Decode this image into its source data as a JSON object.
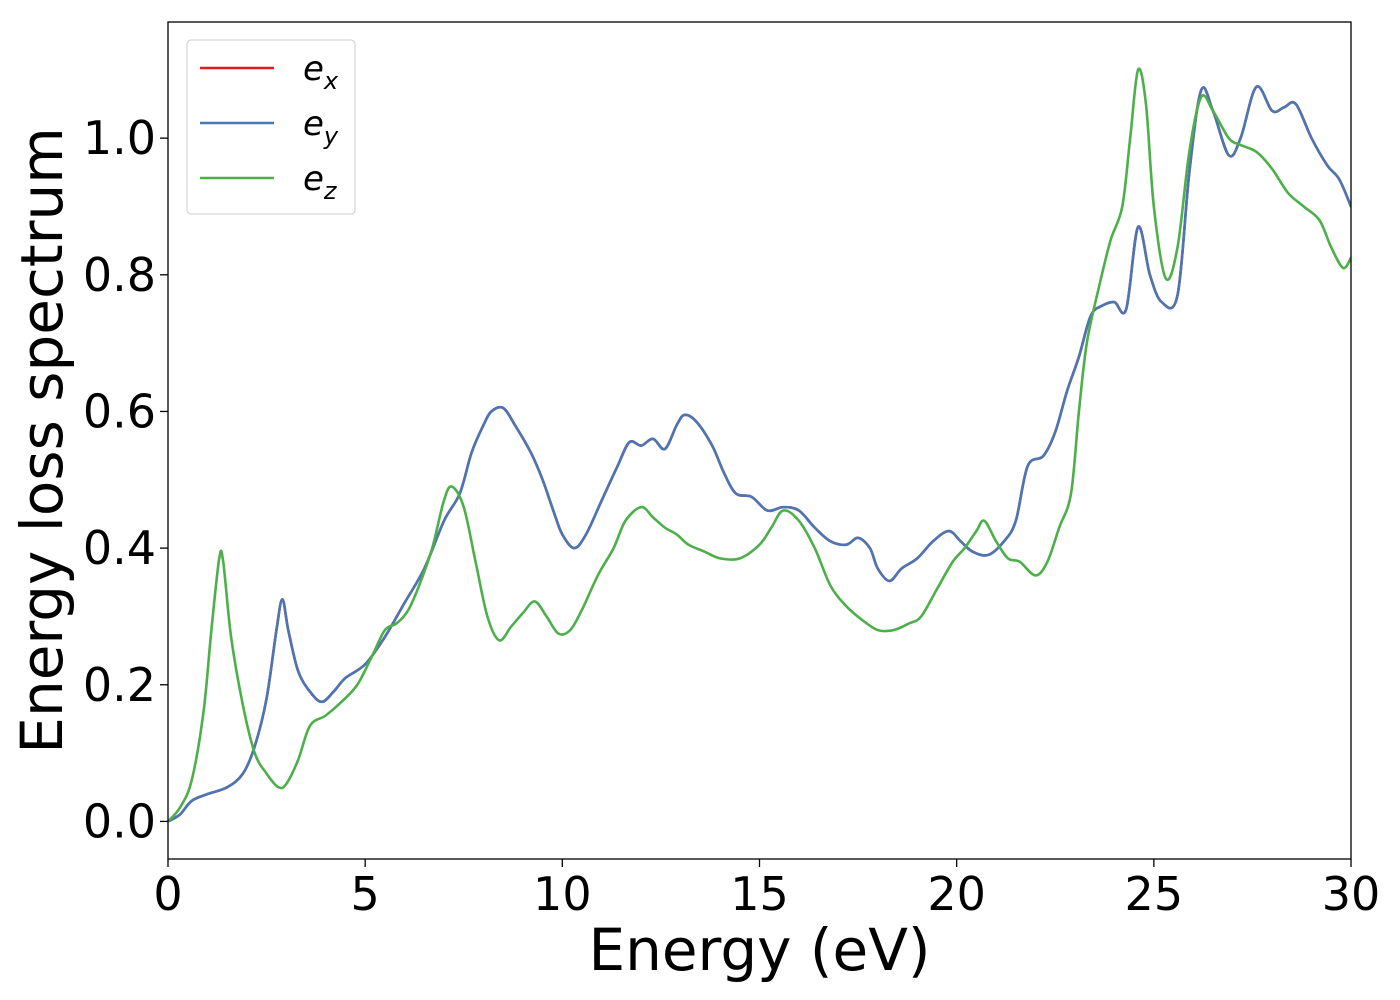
{
  "chart_data": {
    "type": "line",
    "title": "",
    "xlabel": "Energy (eV)",
    "ylabel": "Energy loss spectrum",
    "xlim": [
      0,
      30
    ],
    "ylim": [
      -0.055,
      1.17
    ],
    "grid": false,
    "legend_position": "top-left",
    "x_ticks": [
      0,
      5,
      10,
      15,
      20,
      25,
      30
    ],
    "x_tick_labels": [
      "0",
      "5",
      "10",
      "15",
      "20",
      "25",
      "30"
    ],
    "y_ticks": [
      0.0,
      0.2,
      0.4,
      0.6,
      0.8,
      1.0
    ],
    "y_tick_labels": [
      "0.0",
      "0.2",
      "0.4",
      "0.6",
      "0.8",
      "1.0"
    ],
    "series": [
      {
        "name": "e_x",
        "base": "e",
        "sub": "x",
        "color": "#e41a1c",
        "points": [
          [
            0,
            0
          ],
          [
            0.3,
            0.01
          ],
          [
            0.6,
            0.03
          ],
          [
            1.0,
            0.04
          ],
          [
            1.5,
            0.05
          ],
          [
            1.9,
            0.07
          ],
          [
            2.2,
            0.11
          ],
          [
            2.5,
            0.18
          ],
          [
            2.75,
            0.28
          ],
          [
            2.9,
            0.325
          ],
          [
            3.05,
            0.28
          ],
          [
            3.3,
            0.22
          ],
          [
            3.6,
            0.19
          ],
          [
            3.9,
            0.175
          ],
          [
            4.2,
            0.19
          ],
          [
            4.5,
            0.21
          ],
          [
            5.0,
            0.23
          ],
          [
            5.5,
            0.27
          ],
          [
            6.0,
            0.32
          ],
          [
            6.5,
            0.37
          ],
          [
            7.0,
            0.44
          ],
          [
            7.4,
            0.48
          ],
          [
            7.7,
            0.54
          ],
          [
            8.0,
            0.58
          ],
          [
            8.2,
            0.6
          ],
          [
            8.5,
            0.605
          ],
          [
            8.8,
            0.58
          ],
          [
            9.2,
            0.54
          ],
          [
            9.5,
            0.5
          ],
          [
            9.8,
            0.45
          ],
          [
            10.0,
            0.42
          ],
          [
            10.3,
            0.4
          ],
          [
            10.6,
            0.42
          ],
          [
            11.0,
            0.47
          ],
          [
            11.4,
            0.52
          ],
          [
            11.7,
            0.555
          ],
          [
            12.0,
            0.55
          ],
          [
            12.3,
            0.56
          ],
          [
            12.6,
            0.545
          ],
          [
            12.9,
            0.58
          ],
          [
            13.1,
            0.595
          ],
          [
            13.4,
            0.585
          ],
          [
            13.8,
            0.55
          ],
          [
            14.1,
            0.51
          ],
          [
            14.4,
            0.48
          ],
          [
            14.8,
            0.475
          ],
          [
            15.2,
            0.455
          ],
          [
            15.6,
            0.46
          ],
          [
            16.0,
            0.455
          ],
          [
            16.4,
            0.43
          ],
          [
            16.8,
            0.41
          ],
          [
            17.2,
            0.405
          ],
          [
            17.5,
            0.415
          ],
          [
            17.8,
            0.4
          ],
          [
            18.0,
            0.37
          ],
          [
            18.3,
            0.352
          ],
          [
            18.6,
            0.37
          ],
          [
            19.0,
            0.385
          ],
          [
            19.4,
            0.41
          ],
          [
            19.8,
            0.425
          ],
          [
            20.1,
            0.41
          ],
          [
            20.4,
            0.395
          ],
          [
            20.8,
            0.39
          ],
          [
            21.2,
            0.41
          ],
          [
            21.5,
            0.44
          ],
          [
            21.8,
            0.52
          ],
          [
            22.2,
            0.535
          ],
          [
            22.5,
            0.57
          ],
          [
            22.8,
            0.63
          ],
          [
            23.1,
            0.68
          ],
          [
            23.4,
            0.74
          ],
          [
            23.7,
            0.755
          ],
          [
            24.0,
            0.76
          ],
          [
            24.3,
            0.75
          ],
          [
            24.6,
            0.87
          ],
          [
            24.9,
            0.8
          ],
          [
            25.2,
            0.76
          ],
          [
            25.6,
            0.77
          ],
          [
            25.9,
            0.95
          ],
          [
            26.2,
            1.07
          ],
          [
            26.5,
            1.04
          ],
          [
            26.9,
            0.975
          ],
          [
            27.2,
            1.0
          ],
          [
            27.6,
            1.075
          ],
          [
            28.0,
            1.04
          ],
          [
            28.3,
            1.045
          ],
          [
            28.6,
            1.05
          ],
          [
            29.0,
            1.0
          ],
          [
            29.4,
            0.96
          ],
          [
            29.7,
            0.94
          ],
          [
            30.0,
            0.9
          ]
        ]
      },
      {
        "name": "e_y",
        "base": "e",
        "sub": "y",
        "color": "#4a77b4",
        "points": [
          [
            0,
            0
          ],
          [
            0.3,
            0.01
          ],
          [
            0.6,
            0.03
          ],
          [
            1.0,
            0.04
          ],
          [
            1.5,
            0.05
          ],
          [
            1.9,
            0.07
          ],
          [
            2.2,
            0.11
          ],
          [
            2.5,
            0.18
          ],
          [
            2.75,
            0.28
          ],
          [
            2.9,
            0.325
          ],
          [
            3.05,
            0.28
          ],
          [
            3.3,
            0.22
          ],
          [
            3.6,
            0.19
          ],
          [
            3.9,
            0.175
          ],
          [
            4.2,
            0.19
          ],
          [
            4.5,
            0.21
          ],
          [
            5.0,
            0.23
          ],
          [
            5.5,
            0.27
          ],
          [
            6.0,
            0.32
          ],
          [
            6.5,
            0.37
          ],
          [
            7.0,
            0.44
          ],
          [
            7.4,
            0.48
          ],
          [
            7.7,
            0.54
          ],
          [
            8.0,
            0.58
          ],
          [
            8.2,
            0.6
          ],
          [
            8.5,
            0.605
          ],
          [
            8.8,
            0.58
          ],
          [
            9.2,
            0.54
          ],
          [
            9.5,
            0.5
          ],
          [
            9.8,
            0.45
          ],
          [
            10.0,
            0.42
          ],
          [
            10.3,
            0.4
          ],
          [
            10.6,
            0.42
          ],
          [
            11.0,
            0.47
          ],
          [
            11.4,
            0.52
          ],
          [
            11.7,
            0.555
          ],
          [
            12.0,
            0.55
          ],
          [
            12.3,
            0.56
          ],
          [
            12.6,
            0.545
          ],
          [
            12.9,
            0.58
          ],
          [
            13.1,
            0.595
          ],
          [
            13.4,
            0.585
          ],
          [
            13.8,
            0.55
          ],
          [
            14.1,
            0.51
          ],
          [
            14.4,
            0.48
          ],
          [
            14.8,
            0.475
          ],
          [
            15.2,
            0.455
          ],
          [
            15.6,
            0.46
          ],
          [
            16.0,
            0.455
          ],
          [
            16.4,
            0.43
          ],
          [
            16.8,
            0.41
          ],
          [
            17.2,
            0.405
          ],
          [
            17.5,
            0.415
          ],
          [
            17.8,
            0.4
          ],
          [
            18.0,
            0.37
          ],
          [
            18.3,
            0.352
          ],
          [
            18.6,
            0.37
          ],
          [
            19.0,
            0.385
          ],
          [
            19.4,
            0.41
          ],
          [
            19.8,
            0.425
          ],
          [
            20.1,
            0.41
          ],
          [
            20.4,
            0.395
          ],
          [
            20.8,
            0.39
          ],
          [
            21.2,
            0.41
          ],
          [
            21.5,
            0.44
          ],
          [
            21.8,
            0.52
          ],
          [
            22.2,
            0.535
          ],
          [
            22.5,
            0.57
          ],
          [
            22.8,
            0.63
          ],
          [
            23.1,
            0.68
          ],
          [
            23.4,
            0.74
          ],
          [
            23.7,
            0.755
          ],
          [
            24.0,
            0.76
          ],
          [
            24.3,
            0.75
          ],
          [
            24.6,
            0.87
          ],
          [
            24.9,
            0.8
          ],
          [
            25.2,
            0.76
          ],
          [
            25.6,
            0.77
          ],
          [
            25.9,
            0.95
          ],
          [
            26.2,
            1.07
          ],
          [
            26.5,
            1.04
          ],
          [
            26.9,
            0.975
          ],
          [
            27.2,
            1.0
          ],
          [
            27.6,
            1.075
          ],
          [
            28.0,
            1.04
          ],
          [
            28.3,
            1.045
          ],
          [
            28.6,
            1.05
          ],
          [
            29.0,
            1.0
          ],
          [
            29.4,
            0.96
          ],
          [
            29.7,
            0.94
          ],
          [
            30.0,
            0.9
          ]
        ]
      },
      {
        "name": "e_z",
        "base": "e",
        "sub": "z",
        "color": "#4daf4a",
        "points": [
          [
            0,
            0
          ],
          [
            0.3,
            0.02
          ],
          [
            0.6,
            0.06
          ],
          [
            0.9,
            0.16
          ],
          [
            1.1,
            0.28
          ],
          [
            1.3,
            0.385
          ],
          [
            1.4,
            0.38
          ],
          [
            1.6,
            0.27
          ],
          [
            1.9,
            0.17
          ],
          [
            2.2,
            0.1
          ],
          [
            2.5,
            0.07
          ],
          [
            2.8,
            0.05
          ],
          [
            3.0,
            0.055
          ],
          [
            3.3,
            0.09
          ],
          [
            3.6,
            0.14
          ],
          [
            4.0,
            0.155
          ],
          [
            4.4,
            0.175
          ],
          [
            4.8,
            0.2
          ],
          [
            5.2,
            0.245
          ],
          [
            5.5,
            0.28
          ],
          [
            5.8,
            0.29
          ],
          [
            6.1,
            0.31
          ],
          [
            6.4,
            0.35
          ],
          [
            6.7,
            0.4
          ],
          [
            7.0,
            0.47
          ],
          [
            7.2,
            0.49
          ],
          [
            7.5,
            0.46
          ],
          [
            7.8,
            0.38
          ],
          [
            8.1,
            0.3
          ],
          [
            8.4,
            0.265
          ],
          [
            8.7,
            0.285
          ],
          [
            9.0,
            0.305
          ],
          [
            9.3,
            0.322
          ],
          [
            9.6,
            0.3
          ],
          [
            9.9,
            0.275
          ],
          [
            10.2,
            0.28
          ],
          [
            10.5,
            0.31
          ],
          [
            10.9,
            0.36
          ],
          [
            11.3,
            0.4
          ],
          [
            11.6,
            0.44
          ],
          [
            12.0,
            0.46
          ],
          [
            12.3,
            0.445
          ],
          [
            12.6,
            0.43
          ],
          [
            12.9,
            0.42
          ],
          [
            13.2,
            0.405
          ],
          [
            13.6,
            0.395
          ],
          [
            14.0,
            0.385
          ],
          [
            14.5,
            0.385
          ],
          [
            15.0,
            0.405
          ],
          [
            15.3,
            0.43
          ],
          [
            15.6,
            0.455
          ],
          [
            16.0,
            0.44
          ],
          [
            16.4,
            0.4
          ],
          [
            16.8,
            0.345
          ],
          [
            17.2,
            0.315
          ],
          [
            17.6,
            0.295
          ],
          [
            18.0,
            0.28
          ],
          [
            18.4,
            0.28
          ],
          [
            18.8,
            0.29
          ],
          [
            19.1,
            0.3
          ],
          [
            19.5,
            0.34
          ],
          [
            19.9,
            0.38
          ],
          [
            20.2,
            0.4
          ],
          [
            20.5,
            0.425
          ],
          [
            20.7,
            0.44
          ],
          [
            21.0,
            0.41
          ],
          [
            21.3,
            0.385
          ],
          [
            21.6,
            0.38
          ],
          [
            22.0,
            0.36
          ],
          [
            22.3,
            0.38
          ],
          [
            22.6,
            0.43
          ],
          [
            22.9,
            0.48
          ],
          [
            23.1,
            0.6
          ],
          [
            23.3,
            0.7
          ],
          [
            23.6,
            0.78
          ],
          [
            23.9,
            0.85
          ],
          [
            24.2,
            0.9
          ],
          [
            24.4,
            1.0
          ],
          [
            24.6,
            1.1
          ],
          [
            24.8,
            1.05
          ],
          [
            25.0,
            0.9
          ],
          [
            25.3,
            0.795
          ],
          [
            25.6,
            0.84
          ],
          [
            25.9,
            0.98
          ],
          [
            26.2,
            1.06
          ],
          [
            26.5,
            1.04
          ],
          [
            26.9,
            1.0
          ],
          [
            27.2,
            0.99
          ],
          [
            27.6,
            0.98
          ],
          [
            28.0,
            0.955
          ],
          [
            28.4,
            0.92
          ],
          [
            28.8,
            0.9
          ],
          [
            29.2,
            0.88
          ],
          [
            29.5,
            0.84
          ],
          [
            29.8,
            0.81
          ],
          [
            30.0,
            0.825
          ]
        ]
      }
    ]
  }
}
